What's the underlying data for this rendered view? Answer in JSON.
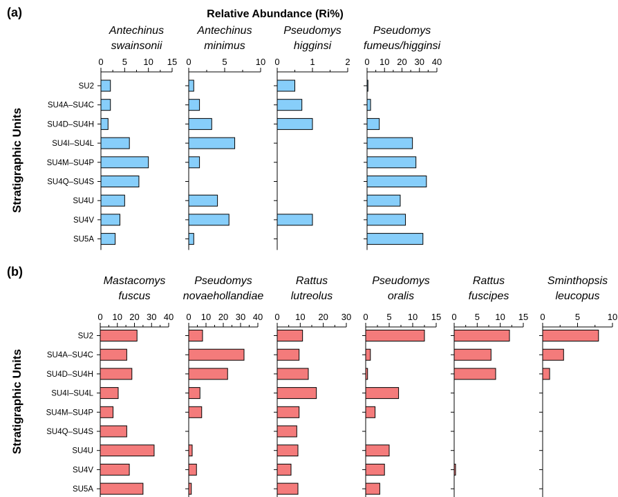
{
  "figure": {
    "title": "Relative Abundance (Ri%)",
    "ylabel": "Stratigraphic Units",
    "categories": [
      "SU2",
      "SU4A–SU4C",
      "SU4D–SU4H",
      "SU4I–SU4L",
      "SU4M–SU4P",
      "SU4Q–SU4S",
      "SU4U",
      "SU4V",
      "SU5A"
    ]
  },
  "chart_data": [
    {
      "type": "bar",
      "orientation": "horizontal",
      "panel_label": "(a)",
      "title": "Relative Abundance (Ri%)",
      "ylabel": "Stratigraphic Units",
      "categories": [
        "SU2",
        "SU4A–SU4C",
        "SU4D–SU4H",
        "SU4I–SU4L",
        "SU4M–SU4P",
        "SU4Q–SU4S",
        "SU4U",
        "SU4V",
        "SU5A"
      ],
      "color": "#87cefa",
      "series": [
        {
          "name": "Antechinus swainsonii",
          "name_lines": [
            "Antechinus",
            "swainsonii"
          ],
          "xlim": [
            0,
            15
          ],
          "ticks": [
            0,
            5,
            10,
            15
          ],
          "values": [
            2,
            2,
            1.5,
            6,
            10,
            8,
            5,
            4,
            3
          ]
        },
        {
          "name": "Antechinus minimus",
          "name_lines": [
            "Antechinus",
            "minimus"
          ],
          "xlim": [
            0,
            10
          ],
          "ticks": [
            0,
            5,
            10
          ],
          "values": [
            0.7,
            1.5,
            3.2,
            6.4,
            1.5,
            0,
            4,
            5.6,
            0.7
          ]
        },
        {
          "name": "Pseudomys higginsi",
          "name_lines": [
            "Pseudomys",
            "higginsi"
          ],
          "xlim": [
            0,
            2
          ],
          "ticks": [
            0,
            1,
            2
          ],
          "values": [
            0.5,
            0.7,
            1.0,
            0,
            0,
            0,
            0,
            1.0,
            0
          ]
        },
        {
          "name": "Pseudomys fumeus/higginsi",
          "name_lines": [
            "Pseudomys",
            "fumeus/higginsi"
          ],
          "xlim": [
            0,
            40
          ],
          "ticks": [
            0,
            10,
            20,
            30,
            40
          ],
          "values": [
            0.5,
            2,
            7,
            26,
            28,
            34,
            19,
            22,
            32
          ]
        }
      ]
    },
    {
      "type": "bar",
      "orientation": "horizontal",
      "panel_label": "(b)",
      "ylabel": "Stratigraphic Units",
      "categories": [
        "SU2",
        "SU4A–SU4C",
        "SU4D–SU4H",
        "SU4I–SU4L",
        "SU4M–SU4P",
        "SU4Q–SU4S",
        "SU4U",
        "SU4V",
        "SU5A"
      ],
      "color": "#f47b7b",
      "series": [
        {
          "name": "Mastacomys fuscus",
          "name_lines": [
            "Mastacomys",
            "fuscus"
          ],
          "xlim": [
            0,
            40
          ],
          "ticks": [
            0,
            10,
            20,
            30,
            40
          ],
          "values": [
            21.5,
            15.5,
            18.5,
            10.5,
            7.5,
            15.5,
            31.5,
            17,
            25
          ]
        },
        {
          "name": "Pseudomys novaehollandiae",
          "name_lines": [
            "Pseudomys",
            "novaehollandiae"
          ],
          "xlim": [
            0,
            40
          ],
          "ticks": [
            0,
            10,
            20,
            30,
            40
          ],
          "values": [
            8,
            32,
            22.5,
            6.5,
            7.5,
            0,
            2,
            4.5,
            1.5
          ]
        },
        {
          "name": "Rattus lutreolus",
          "name_lines": [
            "Rattus",
            "lutreolus"
          ],
          "xlim": [
            0,
            30
          ],
          "ticks": [
            0,
            10,
            20,
            30
          ],
          "values": [
            11,
            9.5,
            13.5,
            17,
            9.5,
            8.5,
            9,
            6,
            9
          ]
        },
        {
          "name": "Pseudomys oralis",
          "name_lines": [
            "Pseudomys",
            "oralis"
          ],
          "xlim": [
            0,
            15
          ],
          "ticks": [
            0,
            5,
            10,
            15
          ],
          "values": [
            12.5,
            1,
            0.4,
            7,
            2,
            0,
            5,
            4,
            3
          ]
        },
        {
          "name": "Rattus fuscipes",
          "name_lines": [
            "Rattus",
            "fuscipes"
          ],
          "xlim": [
            0,
            15
          ],
          "ticks": [
            0,
            5,
            10,
            15
          ],
          "values": [
            12,
            8,
            9,
            0,
            0,
            0,
            0,
            0.3,
            0
          ]
        },
        {
          "name": "Sminthopsis leucopus",
          "name_lines": [
            "Sminthopsis",
            "leucopus"
          ],
          "xlim": [
            0,
            10
          ],
          "ticks": [
            0,
            5,
            10
          ],
          "values": [
            8,
            3,
            1,
            0,
            0,
            0,
            0,
            0,
            0
          ]
        }
      ]
    }
  ]
}
